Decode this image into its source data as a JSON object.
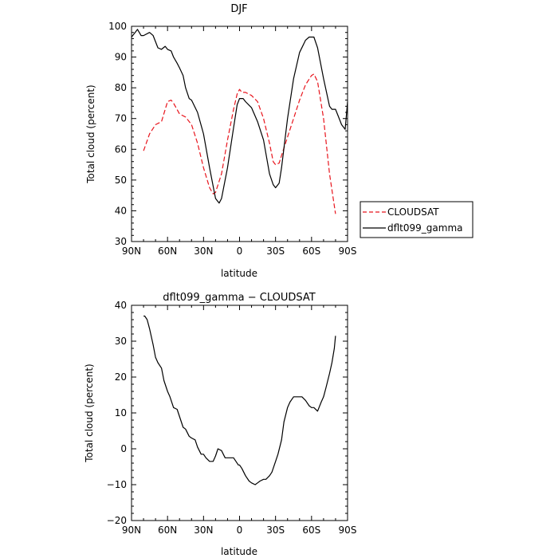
{
  "chart_data": [
    {
      "type": "line",
      "title": "DJF",
      "xlabel": "latitude",
      "ylabel": "Total cloud (percent)",
      "xlim": [
        90,
        -90
      ],
      "ylim": [
        30,
        100
      ],
      "xticks": [
        90,
        60,
        30,
        0,
        -30,
        -60,
        -90
      ],
      "xtick_labels": [
        "90N",
        "60N",
        "30N",
        "0",
        "30S",
        "60S",
        "90S"
      ],
      "yticks": [
        30,
        40,
        50,
        60,
        70,
        80,
        90,
        100
      ],
      "ytick_labels": [
        "30",
        "40",
        "50",
        "60",
        "70",
        "80",
        "90",
        "100"
      ],
      "grid": false,
      "legend": "outside-right",
      "series": [
        {
          "name": "CLOUDSAT",
          "color": "#e8141c",
          "dash": "dashed",
          "x": [
            80,
            75,
            70,
            65,
            60,
            57,
            55,
            50,
            45,
            40,
            35,
            30,
            25,
            22,
            20,
            15,
            10,
            5,
            2,
            0,
            -2,
            -5,
            -10,
            -15,
            -20,
            -25,
            -28,
            -30,
            -33,
            -35,
            -40,
            -45,
            -50,
            -55,
            -60,
            -62,
            -65,
            -70,
            -75,
            -80
          ],
          "y": [
            59.5,
            65,
            68,
            69,
            75.5,
            76,
            75,
            71.5,
            70.5,
            68,
            62,
            54,
            47.5,
            45.5,
            46,
            52,
            63,
            73,
            78,
            79.5,
            78.5,
            78.5,
            77.5,
            75.5,
            70,
            62,
            56,
            55,
            55.5,
            58,
            64,
            70,
            76,
            81,
            84,
            84.5,
            82,
            70,
            52,
            39
          ]
        },
        {
          "name": "dflt099_gamma",
          "color": "#000000",
          "dash": "solid",
          "x": [
            90,
            85,
            82,
            80,
            75,
            72,
            68,
            65,
            62,
            60,
            57,
            55,
            52,
            50,
            47,
            45,
            42,
            40,
            35,
            30,
            25,
            22,
            20,
            17,
            15,
            10,
            5,
            2,
            0,
            -3,
            -5,
            -10,
            -15,
            -20,
            -25,
            -28,
            -30,
            -33,
            -35,
            -40,
            -45,
            -50,
            -55,
            -58,
            -60,
            -62,
            -65,
            -70,
            -75,
            -77,
            -80,
            -82,
            -85,
            -88,
            -90
          ],
          "y": [
            96.5,
            99,
            97,
            97,
            98,
            97,
            93,
            92.5,
            93.5,
            92.5,
            92,
            90,
            88,
            86.5,
            84,
            80,
            76.5,
            76,
            72,
            65,
            54,
            48,
            44,
            42.5,
            44,
            54,
            67,
            74.5,
            76.5,
            76.5,
            75.5,
            73.5,
            69,
            63,
            52,
            48.5,
            47.5,
            49,
            54,
            70,
            83,
            91.5,
            95.5,
            96.5,
            96.5,
            96.5,
            93,
            83,
            74,
            73,
            73,
            71,
            68,
            66.5,
            75.5
          ]
        }
      ]
    },
    {
      "type": "line",
      "title": "dflt099_gamma − CLOUDSAT",
      "xlabel": "latitude",
      "ylabel": "Total cloud (percent)",
      "xlim": [
        90,
        -90
      ],
      "ylim": [
        -20,
        40
      ],
      "xticks": [
        90,
        60,
        30,
        0,
        -30,
        -60,
        -90
      ],
      "xtick_labels": [
        "90N",
        "60N",
        "30N",
        "0",
        "30S",
        "60S",
        "90S"
      ],
      "yticks": [
        -20,
        -10,
        0,
        10,
        20,
        30,
        40
      ],
      "ytick_labels": [
        "−20",
        "−10",
        "0",
        "10",
        "20",
        "30",
        "40"
      ],
      "grid": false,
      "series": [
        {
          "color": "#000000",
          "dash": "solid",
          "x": [
            80,
            79,
            77,
            75,
            72,
            70,
            68,
            65,
            63,
            60,
            58,
            55,
            52,
            50,
            47,
            45,
            42,
            40,
            37,
            35,
            32,
            30,
            28,
            25,
            22,
            20,
            18,
            15,
            12,
            10,
            8,
            5,
            3,
            1,
            0,
            -2,
            -5,
            -8,
            -10,
            -13,
            -15,
            -17,
            -20,
            -22,
            -25,
            -27,
            -30,
            -32,
            -35,
            -37,
            -40,
            -42,
            -45,
            -47,
            -50,
            -52,
            -55,
            -58,
            -60,
            -62,
            -65,
            -68,
            -70,
            -72,
            -75,
            -77,
            -79,
            -80
          ],
          "y": [
            37,
            37,
            36,
            33.5,
            29,
            25.5,
            24,
            22.5,
            19,
            16,
            14.5,
            11.5,
            11,
            9,
            6,
            5.5,
            3.5,
            3,
            2.5,
            0.5,
            -1.5,
            -1.5,
            -2.5,
            -3.5,
            -3.5,
            -2,
            0,
            -0.5,
            -2.5,
            -2.5,
            -2.5,
            -2.5,
            -3.5,
            -4.5,
            -4.5,
            -5.5,
            -7.5,
            -9,
            -9.5,
            -10,
            -9.5,
            -9,
            -8.5,
            -8.5,
            -7.5,
            -6.5,
            -3.5,
            -1.5,
            2.5,
            7.5,
            11.5,
            13,
            14.5,
            14.5,
            14.5,
            14.5,
            13.5,
            12,
            11.5,
            11.5,
            10.5,
            13,
            14.5,
            17,
            21,
            24,
            28,
            31.5
          ]
        }
      ]
    }
  ]
}
